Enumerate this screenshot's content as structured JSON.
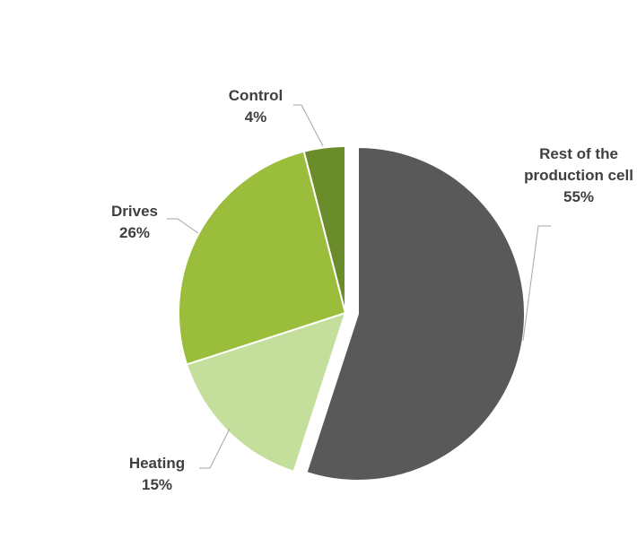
{
  "chart_data": {
    "type": "pie",
    "categories": [
      "Rest of the production cell",
      "Heating",
      "Drives",
      "Control"
    ],
    "values": [
      55,
      15,
      26,
      4
    ],
    "value_labels": [
      "55%",
      "15%",
      "26%",
      "4%"
    ],
    "colors": [
      "#595959",
      "#c4df9c",
      "#9abe3c",
      "#6b8c2a"
    ]
  }
}
